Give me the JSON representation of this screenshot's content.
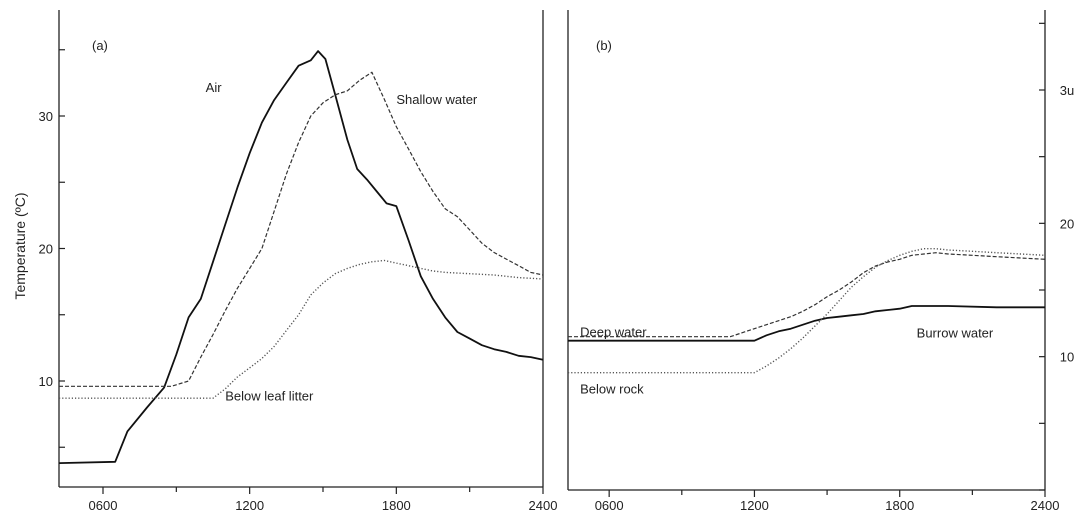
{
  "chart_data": [
    {
      "type": "line",
      "panel_label": "(a)",
      "ylabel": "Temperature (ºC)",
      "xlabel": "",
      "xlim": [
        420,
        2400
      ],
      "ylim": [
        2,
        38
      ],
      "xticks": [
        "0600",
        "1200",
        "1800",
        "2400"
      ],
      "xtick_values": [
        600,
        1200,
        1800,
        2400
      ],
      "yticks": [
        "10",
        "20",
        "30"
      ],
      "ytick_values": [
        10,
        20,
        30
      ],
      "series": [
        {
          "name": "Air",
          "style": "solid",
          "color": "#111111",
          "label_at": [
            1020,
            32.2
          ],
          "points": [
            [
              420,
              3.8
            ],
            [
              650,
              3.9
            ],
            [
              700,
              6.2
            ],
            [
              780,
              8.0
            ],
            [
              850,
              9.5
            ],
            [
              900,
              12.0
            ],
            [
              950,
              14.8
            ],
            [
              1000,
              16.2
            ],
            [
              1050,
              19.0
            ],
            [
              1100,
              21.8
            ],
            [
              1150,
              24.6
            ],
            [
              1200,
              27.2
            ],
            [
              1250,
              29.5
            ],
            [
              1300,
              31.2
            ],
            [
              1350,
              32.5
            ],
            [
              1400,
              33.8
            ],
            [
              1450,
              34.2
            ],
            [
              1480,
              34.9
            ],
            [
              1510,
              34.3
            ],
            [
              1550,
              31.6
            ],
            [
              1600,
              28.2
            ],
            [
              1640,
              26.0
            ],
            [
              1680,
              25.2
            ],
            [
              1720,
              24.3
            ],
            [
              1760,
              23.4
            ],
            [
              1800,
              23.2
            ],
            [
              1850,
              20.6
            ],
            [
              1900,
              17.9
            ],
            [
              1950,
              16.2
            ],
            [
              2000,
              14.8
            ],
            [
              2050,
              13.7
            ],
            [
              2100,
              13.2
            ],
            [
              2150,
              12.7
            ],
            [
              2200,
              12.4
            ],
            [
              2250,
              12.2
            ],
            [
              2300,
              11.9
            ],
            [
              2350,
              11.8
            ],
            [
              2400,
              11.6
            ]
          ]
        },
        {
          "name": "Shallow water",
          "style": "dashed",
          "color": "#333333",
          "label_at": [
            1800,
            31.3
          ],
          "points": [
            [
              420,
              9.6
            ],
            [
              880,
              9.6
            ],
            [
              950,
              10.0
            ],
            [
              1000,
              11.8
            ],
            [
              1050,
              13.5
            ],
            [
              1100,
              15.3
            ],
            [
              1150,
              17.0
            ],
            [
              1200,
              18.5
            ],
            [
              1250,
              20.0
            ],
            [
              1300,
              22.8
            ],
            [
              1350,
              25.6
            ],
            [
              1400,
              28.0
            ],
            [
              1450,
              30.0
            ],
            [
              1500,
              31.0
            ],
            [
              1550,
              31.6
            ],
            [
              1600,
              31.9
            ],
            [
              1650,
              32.7
            ],
            [
              1700,
              33.3
            ],
            [
              1750,
              31.3
            ],
            [
              1800,
              29.2
            ],
            [
              1850,
              27.5
            ],
            [
              1900,
              25.8
            ],
            [
              1950,
              24.3
            ],
            [
              2000,
              23.0
            ],
            [
              2050,
              22.4
            ],
            [
              2100,
              21.4
            ],
            [
              2150,
              20.4
            ],
            [
              2200,
              19.7
            ],
            [
              2250,
              19.2
            ],
            [
              2300,
              18.7
            ],
            [
              2350,
              18.2
            ],
            [
              2400,
              18.0
            ]
          ]
        },
        {
          "name": "Below leaf litter",
          "style": "dotted",
          "color": "#555555",
          "label_at": [
            1100,
            8.9
          ],
          "points": [
            [
              420,
              8.7
            ],
            [
              1050,
              8.7
            ],
            [
              1100,
              9.4
            ],
            [
              1150,
              10.3
            ],
            [
              1200,
              11.0
            ],
            [
              1250,
              11.7
            ],
            [
              1300,
              12.6
            ],
            [
              1350,
              13.8
            ],
            [
              1400,
              15.0
            ],
            [
              1450,
              16.5
            ],
            [
              1500,
              17.4
            ],
            [
              1550,
              18.1
            ],
            [
              1600,
              18.5
            ],
            [
              1650,
              18.8
            ],
            [
              1700,
              19.0
            ],
            [
              1750,
              19.1
            ],
            [
              1800,
              18.9
            ],
            [
              1850,
              18.7
            ],
            [
              1900,
              18.5
            ],
            [
              1950,
              18.3
            ],
            [
              2000,
              18.2
            ],
            [
              2100,
              18.1
            ],
            [
              2200,
              18.0
            ],
            [
              2300,
              17.8
            ],
            [
              2400,
              17.7
            ]
          ]
        }
      ]
    },
    {
      "type": "line",
      "panel_label": "(b)",
      "ylabel": "",
      "xlabel": "",
      "xlim": [
        430,
        2400
      ],
      "ylim": [
        0,
        36
      ],
      "xticks": [
        "0600",
        "1200",
        "1800",
        "2400"
      ],
      "xtick_values": [
        600,
        1200,
        1800,
        2400
      ],
      "yticks": [
        "10",
        "20",
        "3u"
      ],
      "ytick_values": [
        10,
        20,
        30
      ],
      "series": [
        {
          "name": "Deep water",
          "style": "dashed",
          "color": "#333333",
          "label_at": [
            480,
            11.9
          ],
          "points": [
            [
              430,
              11.5
            ],
            [
              1100,
              11.5
            ],
            [
              1150,
              11.8
            ],
            [
              1200,
              12.1
            ],
            [
              1250,
              12.4
            ],
            [
              1300,
              12.7
            ],
            [
              1350,
              13.0
            ],
            [
              1400,
              13.4
            ],
            [
              1450,
              13.9
            ],
            [
              1500,
              14.5
            ],
            [
              1550,
              15.0
            ],
            [
              1600,
              15.6
            ],
            [
              1650,
              16.3
            ],
            [
              1700,
              16.8
            ],
            [
              1750,
              17.1
            ],
            [
              1800,
              17.3
            ],
            [
              1850,
              17.6
            ],
            [
              1900,
              17.7
            ],
            [
              1950,
              17.8
            ],
            [
              2000,
              17.7
            ],
            [
              2100,
              17.6
            ],
            [
              2200,
              17.5
            ],
            [
              2300,
              17.4
            ],
            [
              2400,
              17.3
            ]
          ]
        },
        {
          "name": "Burrow water",
          "style": "solid",
          "color": "#111111",
          "label_at": [
            1870,
            11.8
          ],
          "points": [
            [
              430,
              11.2
            ],
            [
              1200,
              11.2
            ],
            [
              1250,
              11.6
            ],
            [
              1300,
              11.9
            ],
            [
              1350,
              12.1
            ],
            [
              1400,
              12.4
            ],
            [
              1450,
              12.7
            ],
            [
              1500,
              12.9
            ],
            [
              1550,
              13.0
            ],
            [
              1600,
              13.1
            ],
            [
              1650,
              13.2
            ],
            [
              1700,
              13.4
            ],
            [
              1750,
              13.5
            ],
            [
              1800,
              13.6
            ],
            [
              1850,
              13.8
            ],
            [
              2000,
              13.8
            ],
            [
              2200,
              13.7
            ],
            [
              2400,
              13.7
            ]
          ]
        },
        {
          "name": "Below rock",
          "style": "dotted",
          "color": "#555555",
          "label_at": [
            480,
            7.6
          ],
          "points": [
            [
              430,
              8.8
            ],
            [
              1200,
              8.8
            ],
            [
              1250,
              9.3
            ],
            [
              1300,
              9.9
            ],
            [
              1350,
              10.6
            ],
            [
              1400,
              11.4
            ],
            [
              1450,
              12.3
            ],
            [
              1500,
              13.2
            ],
            [
              1550,
              14.2
            ],
            [
              1600,
              15.2
            ],
            [
              1650,
              16.0
            ],
            [
              1700,
              16.7
            ],
            [
              1750,
              17.2
            ],
            [
              1800,
              17.6
            ],
            [
              1850,
              17.9
            ],
            [
              1900,
              18.1
            ],
            [
              1950,
              18.1
            ],
            [
              2000,
              18.0
            ],
            [
              2100,
              17.9
            ],
            [
              2200,
              17.8
            ],
            [
              2300,
              17.7
            ],
            [
              2400,
              17.6
            ]
          ]
        }
      ]
    }
  ]
}
